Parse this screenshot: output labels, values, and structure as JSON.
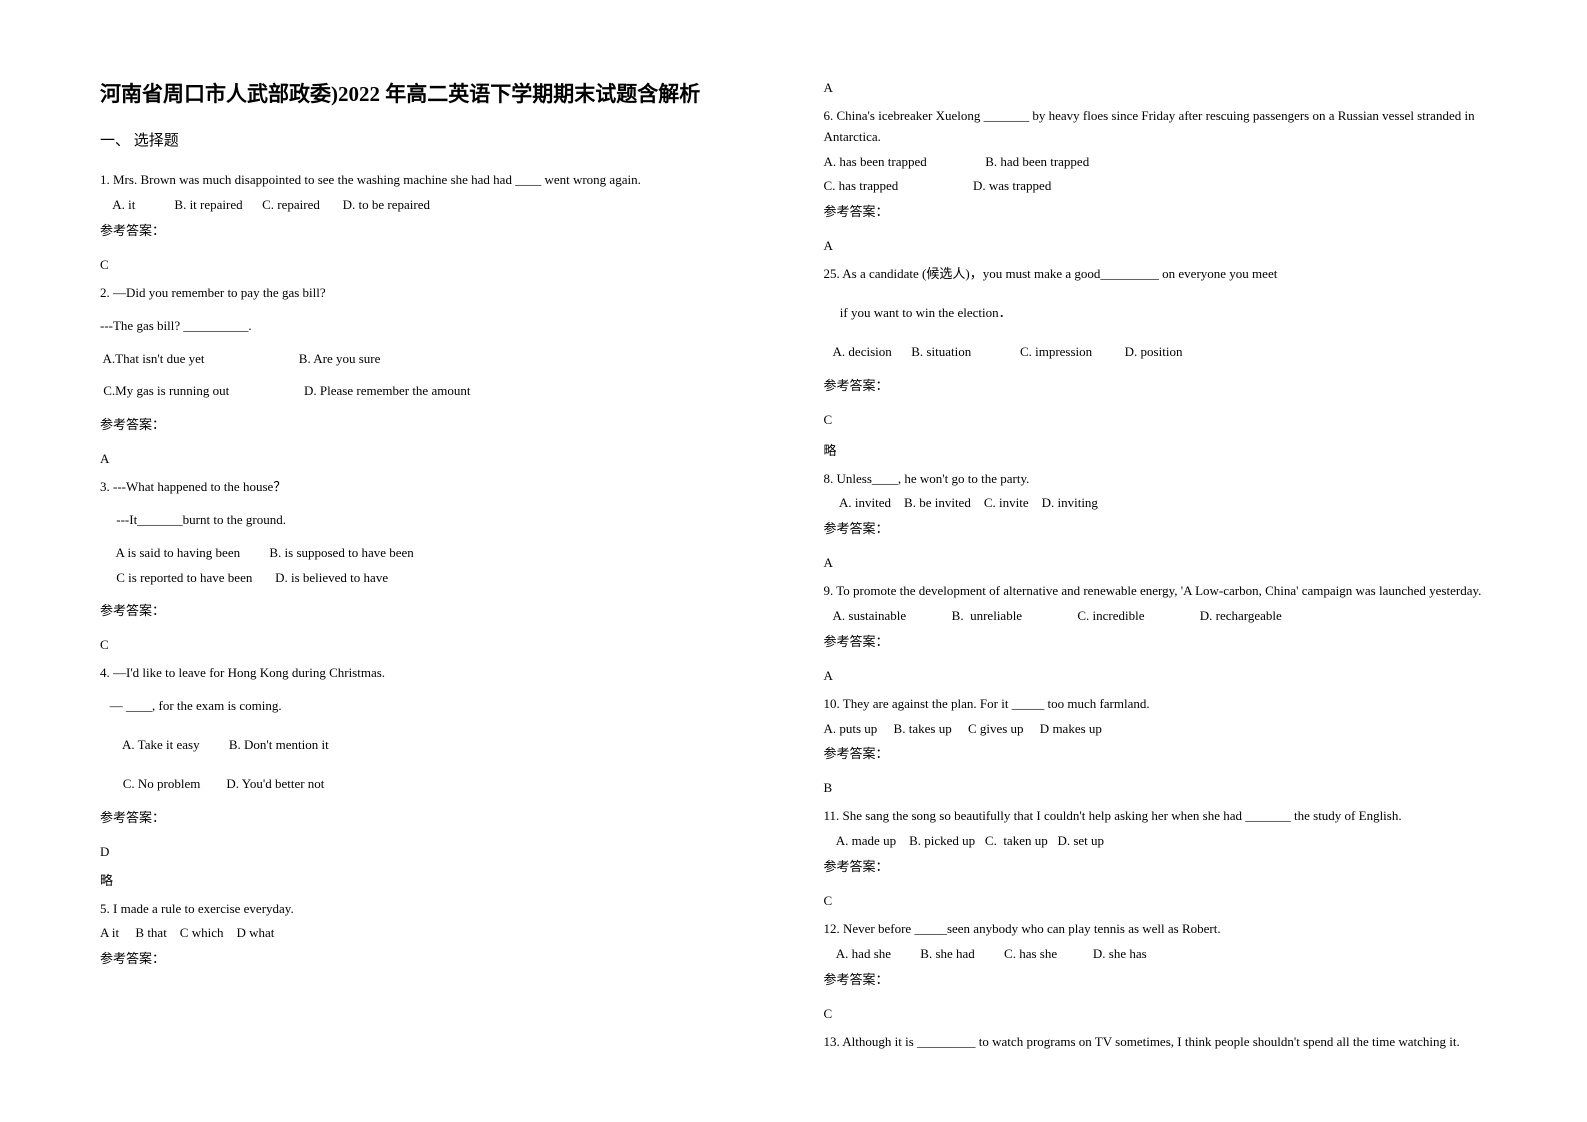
{
  "title": "河南省周口市人武部政委)2022 年高二英语下学期期末试题含解析",
  "section1": "一、 选择题",
  "q1": {
    "stem": "1. Mrs. Brown was much disappointed to see the washing machine she had had ____ went wrong again.",
    "opts": "    A. it            B. it repaired      C. repaired       D. to be repaired",
    "ansLabel": "参考答案：",
    "ans": "C"
  },
  "q2": {
    "line1": "  2. —Did you remember to pay the gas bill?",
    "line2": "---The gas bill? __________.",
    "opt1": " A.That isn't due yet                             B. Are you sure",
    "opt2": " C.My gas is running out                       D. Please remember the amount",
    "ansLabel": "参考答案：",
    "ans": "A"
  },
  "q3": {
    "line1": "3. ---What happened to the house？",
    "line2": "     ---It_______burnt to the ground.",
    "opt1": "     A is said to having been         B. is supposed to have been",
    "opt2": "     C is reported to have been       D. is believed to have",
    "ansLabel": "参考答案：",
    "ans": "C"
  },
  "q4": {
    "line1": "4. —I'd like to leave for Hong Kong during Christmas.",
    "line2": "   — ____, for the exam is coming.",
    "opt1": "       A. Take it easy         B. Don't mention it",
    "opt2": "       C. No problem        D. You'd better not",
    "ansLabel": "参考答案：",
    "ans": "D",
    "note": "略"
  },
  "q5": {
    "line1": "5. I made     a rule to exercise everyday.",
    "opts": "A it     B that    C which    D what",
    "ansLabel": "参考答案：",
    "ans": "A"
  },
  "q6": {
    "line1": "6. China's icebreaker Xuelong  _______  by heavy floes since Friday after rescuing passengers on a Russian vessel stranded in Antarctica.",
    "opt1": "A. has been trapped                  B. had been trapped",
    "opt2": "C. has trapped                       D. was trapped",
    "ansLabel": "参考答案：",
    "ans": "A"
  },
  "q7": {
    "line1": "25. As a candidate (候选人)，you must make a good_________ on everyone you meet",
    "line2": "     if you want to win the election．",
    "opts": "   A. decision      B. situation               C. impression          D. position",
    "ansLabel": "参考答案：",
    "ans": "C",
    "note": "略"
  },
  "q8": {
    "line1": "8. Unless____, he won't go to the party.",
    "opts": "     A. invited    B. be invited    C. invite    D. inviting",
    "ansLabel": "参考答案：",
    "ans": "A"
  },
  "q9": {
    "line1": "9. To promote the        development of alternative and renewable energy, 'A Low-carbon, China' campaign was launched yesterday.",
    "opts": "   A. sustainable              B.  unreliable                 C. incredible                 D. rechargeable",
    "ansLabel": "参考答案：",
    "ans": "A"
  },
  "q10": {
    "line1": "10. They are against the plan. For it _____ too much farmland.",
    "opts": "A. puts up     B. takes up     C gives up     D makes up",
    "ansLabel": "参考答案：",
    "ans": "B"
  },
  "q11": {
    "line1": "11. She sang the song so beautifully that I couldn't help asking her when she had _______ the study of English.",
    "opts": "    A. made up    B. picked up   C.  taken up   D. set up",
    "ansLabel": "参考答案：",
    "ans": "C"
  },
  "q12": {
    "line1": "12. Never before _____seen anybody who can play tennis as well as Robert.",
    "opts": "    A. had she         B. she had         C. has she           D. she has",
    "ansLabel": "参考答案：",
    "ans": "C"
  },
  "q13": {
    "line1": "13. Although it is _________ to watch programs on TV sometimes, I think people shouldn't spend all the time watching it."
  }
}
